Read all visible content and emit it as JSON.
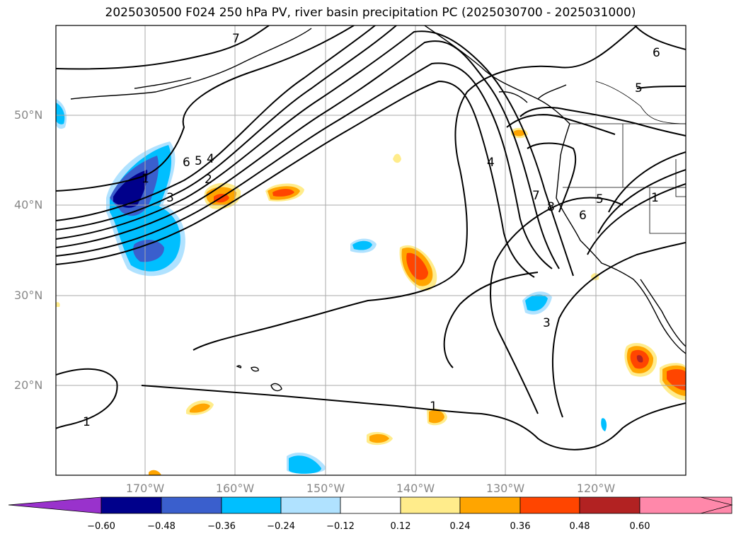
{
  "title": "2025030500 F024 250 hPa PV, river basin precipitation PC (2025030700 - 2025031000)",
  "map": {
    "lat_labels": [
      "50°N",
      "40°N",
      "30°N",
      "20°N"
    ],
    "lon_labels": [
      "170°W",
      "160°W",
      "150°W",
      "140°W",
      "130°W",
      "120°W"
    ],
    "contour_labels": [
      "7",
      "6",
      "5",
      "6",
      "5",
      "4",
      "2",
      "3",
      "1",
      "4",
      "7",
      "8",
      "6",
      "5",
      "1",
      "3",
      "1",
      "1"
    ]
  },
  "colorbar": {
    "ticks": [
      "−0.60",
      "−0.48",
      "−0.36",
      "−0.24",
      "−0.12",
      "0.12",
      "0.24",
      "0.36",
      "0.48",
      "0.60"
    ],
    "colors": [
      "#9932cc",
      "#00008b",
      "#3a5fcd",
      "#00bfff",
      "#b0e2ff",
      "#ffffff",
      "#ffec8b",
      "#ffa500",
      "#ff4500",
      "#b22222",
      "#ff88aa"
    ]
  }
}
